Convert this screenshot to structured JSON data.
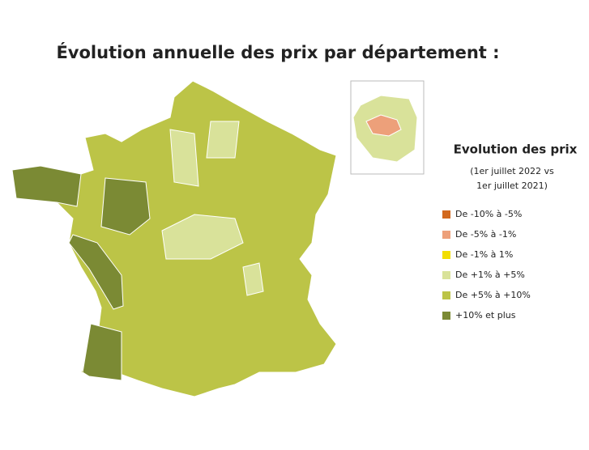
{
  "title": "Évolution annuelle des prix par département :",
  "legend": {
    "title": "Evolution des prix",
    "subtitle": [
      "(1er juillet 2022 vs",
      "1er juillet 2021)"
    ],
    "items": [
      {
        "label": "De -10% à -5%",
        "color": "#d2691e"
      },
      {
        "label": "De -5% à -1%",
        "color": "#eda07a"
      },
      {
        "label": "De -1% à 1%",
        "color": "#f2de00"
      },
      {
        "label": "De +1% à +5%",
        "color": "#d9e29a"
      },
      {
        "label": "De +5% à +10%",
        "color": "#bcc447"
      },
      {
        "label": "+10% et plus",
        "color": "#7b8a34"
      }
    ]
  }
}
